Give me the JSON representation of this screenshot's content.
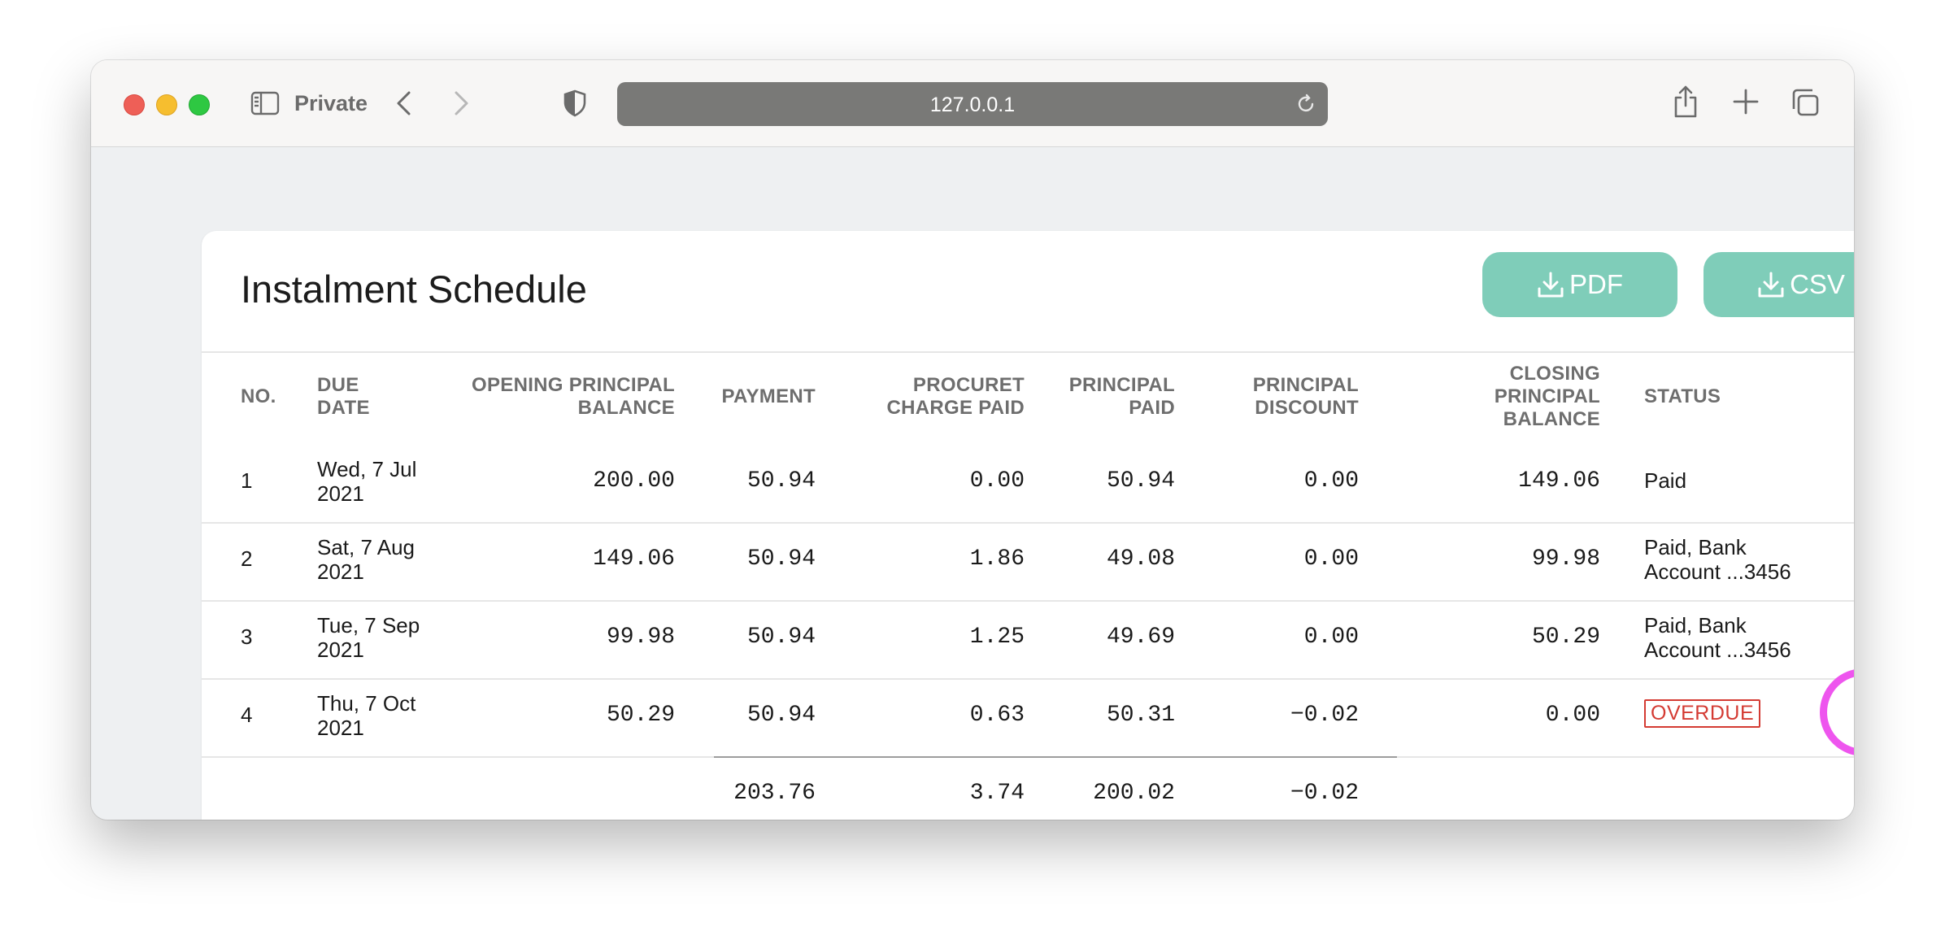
{
  "browser": {
    "mode_label": "Private",
    "url": "127.0.0.1"
  },
  "page": {
    "title": "Instalment Schedule",
    "buttons": {
      "pdf": "PDF",
      "csv": "CSV"
    }
  },
  "table": {
    "headers": {
      "no": "NO.",
      "due_date_1": "DUE",
      "due_date_2": "DATE",
      "opening_1": "OPENING PRINCIPAL",
      "opening_2": "BALANCE",
      "payment": "PAYMENT",
      "charge_1": "PROCURET",
      "charge_2": "CHARGE PAID",
      "principal_paid_1": "PRINCIPAL",
      "principal_paid_2": "PAID",
      "discount_1": "PRINCIPAL",
      "discount_2": "DISCOUNT",
      "closing_1": "CLOSING",
      "closing_2": "PRINCIPAL",
      "closing_3": "BALANCE",
      "status": "STATUS"
    },
    "rows": [
      {
        "no": "1",
        "date_1": "Wed, 7 Jul",
        "date_2": "2021",
        "opening": "200.00",
        "payment": "50.94",
        "charge": "0.00",
        "principal_paid": "50.94",
        "discount": "0.00",
        "closing": "149.06",
        "status_1": "Paid",
        "status_2": ""
      },
      {
        "no": "2",
        "date_1": "Sat, 7 Aug",
        "date_2": "2021",
        "opening": "149.06",
        "payment": "50.94",
        "charge": "1.86",
        "principal_paid": "49.08",
        "discount": "0.00",
        "closing": "99.98",
        "status_1": "Paid, Bank",
        "status_2": "Account ...3456"
      },
      {
        "no": "3",
        "date_1": "Tue, 7 Sep",
        "date_2": "2021",
        "opening": "99.98",
        "payment": "50.94",
        "charge": "1.25",
        "principal_paid": "49.69",
        "discount": "0.00",
        "closing": "50.29",
        "status_1": "Paid, Bank",
        "status_2": "Account ...3456"
      },
      {
        "no": "4",
        "date_1": "Thu, 7 Oct",
        "date_2": "2021",
        "opening": "50.29",
        "payment": "50.94",
        "charge": "0.63",
        "principal_paid": "50.31",
        "discount": "−0.02",
        "closing": "0.00",
        "status_badge": "OVERDUE"
      }
    ],
    "totals": {
      "payment": "203.76",
      "charge": "3.74",
      "principal_paid": "200.02",
      "discount": "−0.02"
    }
  },
  "colors": {
    "button_bg": "#7fcdb9",
    "overdue": "#d43b33",
    "highlight_ring": "#ee55ee"
  },
  "icons": [
    "sidebar-icon",
    "back-arrow-icon",
    "forward-arrow-icon",
    "shield-icon",
    "reload-icon",
    "share-icon",
    "plus-icon",
    "tabs-icon",
    "download-icon",
    "more-vertical-icon"
  ]
}
